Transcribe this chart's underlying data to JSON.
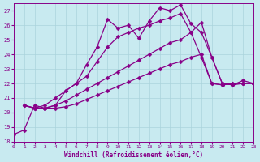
{
  "background_color": "#c8eaf0",
  "grid_color": "#aad4dc",
  "line_color": "#880088",
  "xlabel": "Windchill (Refroidissement éolien,°C)",
  "ylim": [
    18,
    27.5
  ],
  "xlim": [
    0,
    23
  ],
  "yticks": [
    18,
    19,
    20,
    21,
    22,
    23,
    24,
    25,
    26,
    27
  ],
  "xticks": [
    0,
    1,
    2,
    3,
    4,
    5,
    6,
    7,
    8,
    9,
    10,
    11,
    12,
    13,
    14,
    15,
    16,
    17,
    18,
    19,
    20,
    21,
    22,
    23
  ],
  "series": [
    {
      "x": [
        0,
        1,
        2,
        3,
        4,
        5,
        6,
        7,
        8,
        9,
        10,
        11,
        12,
        13,
        14,
        15,
        16,
        17,
        18,
        19,
        20,
        21,
        22,
        23
      ],
      "y": [
        18.5,
        18.8,
        20.5,
        20.3,
        20.5,
        21.5,
        22.0,
        23.3,
        24.5,
        26.4,
        25.8,
        26.0,
        25.1,
        26.3,
        27.2,
        27.0,
        27.4,
        26.1,
        25.5,
        23.8,
        22.0,
        21.9,
        22.2,
        22.0
      ],
      "marker": "D",
      "markersize": 2.5,
      "linewidth": 0.9,
      "linestyle": "-"
    },
    {
      "x": [
        1,
        2,
        3,
        4,
        5,
        6,
        7,
        8,
        9,
        10,
        11,
        12,
        13,
        14,
        15,
        16,
        17,
        18,
        19,
        20,
        21,
        22,
        23
      ],
      "y": [
        20.5,
        20.3,
        20.5,
        21.0,
        21.5,
        22.0,
        22.5,
        23.5,
        24.5,
        25.2,
        25.5,
        25.8,
        26.0,
        26.3,
        26.5,
        26.8,
        25.5,
        23.8,
        22.0,
        21.9,
        22.0,
        22.0,
        22.0
      ],
      "marker": "D",
      "markersize": 2.5,
      "linewidth": 0.9,
      "linestyle": "-"
    },
    {
      "x": [
        1,
        2,
        3,
        4,
        5,
        6,
        7,
        8,
        9,
        10,
        11,
        12,
        13,
        14,
        15,
        16,
        17,
        18,
        19,
        20,
        21,
        22,
        23
      ],
      "y": [
        20.5,
        20.3,
        20.3,
        20.5,
        20.8,
        21.2,
        21.6,
        22.0,
        22.4,
        22.8,
        23.2,
        23.6,
        24.0,
        24.4,
        24.8,
        25.0,
        25.5,
        26.2,
        23.8,
        22.0,
        21.9,
        22.0,
        22.0
      ],
      "marker": "D",
      "markersize": 2.5,
      "linewidth": 0.9,
      "linestyle": "-"
    },
    {
      "x": [
        1,
        2,
        3,
        4,
        5,
        6,
        7,
        8,
        9,
        10,
        11,
        12,
        13,
        14,
        15,
        16,
        17,
        18,
        19,
        20,
        21,
        22,
        23
      ],
      "y": [
        20.5,
        20.3,
        20.3,
        20.3,
        20.4,
        20.6,
        20.9,
        21.2,
        21.5,
        21.8,
        22.1,
        22.4,
        22.7,
        23.0,
        23.3,
        23.5,
        23.8,
        24.0,
        22.0,
        21.9,
        22.0,
        22.0,
        22.0
      ],
      "marker": "D",
      "markersize": 2.5,
      "linewidth": 0.9,
      "linestyle": "-"
    }
  ]
}
